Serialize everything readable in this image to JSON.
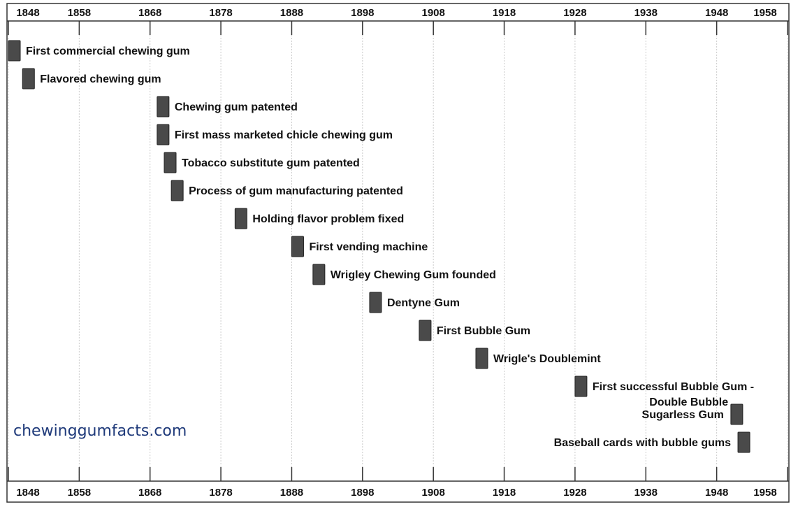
{
  "chart_data": {
    "type": "timeline",
    "xlim": [
      1848,
      1958
    ],
    "tick_labels": [
      "1848",
      "1858",
      "1868",
      "1878",
      "1888",
      "1898",
      "1908",
      "1918",
      "1928",
      "1938",
      "1948",
      "1958"
    ],
    "grid": true,
    "marker_color": "#4a4a4a",
    "events": [
      {
        "year": 1848,
        "label": "First commercial chewing gum",
        "side": "right"
      },
      {
        "year": 1850,
        "label": "Flavored chewing gum",
        "side": "right"
      },
      {
        "year": 1869,
        "label": "Chewing gum patented",
        "side": "right"
      },
      {
        "year": 1869,
        "label": "First mass marketed chicle chewing gum",
        "side": "right"
      },
      {
        "year": 1870,
        "label": "Tobacco substitute gum patented",
        "side": "right"
      },
      {
        "year": 1871,
        "label": "Process of gum manufacturing patented",
        "side": "right"
      },
      {
        "year": 1880,
        "label": "Holding flavor problem fixed",
        "side": "right"
      },
      {
        "year": 1888,
        "label": "First vending machine",
        "side": "right"
      },
      {
        "year": 1891,
        "label": "Wrigley Chewing Gum founded",
        "side": "right"
      },
      {
        "year": 1899,
        "label": "Dentyne Gum",
        "side": "right"
      },
      {
        "year": 1906,
        "label": "First Bubble Gum",
        "side": "right"
      },
      {
        "year": 1914,
        "label": "Wrigle's Doublemint",
        "side": "right"
      },
      {
        "year": 1928,
        "label": "First successful Bubble Gum -|Double Bubble",
        "side": "right"
      },
      {
        "year": 1950,
        "label": "Sugarless Gum",
        "side": "left"
      },
      {
        "year": 1951,
        "label": "Baseball cards with bubble gums",
        "side": "left"
      }
    ]
  },
  "watermark": "chewinggumfacts.com"
}
